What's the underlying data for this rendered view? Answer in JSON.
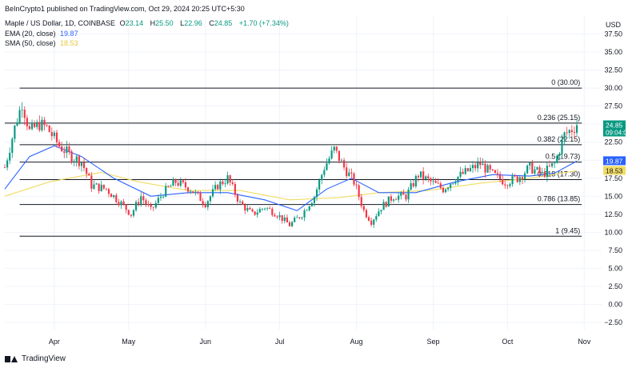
{
  "caption": "BeInCrypto1 published on TradingView.com, Oct 29, 2024 20:25 UTC+5:30",
  "legend": {
    "symbol": "Maple / US Dollar, 1D, COINBASE",
    "o_label": "O",
    "o_value": "23.14",
    "h_label": "H",
    "h_value": "25.50",
    "l_label": "L",
    "l_value": "22.96",
    "c_label": "C",
    "c_value": "24.85",
    "change": "+1.70 (+7.34%)",
    "ema_label": "EMA (20, close)",
    "ema_value": "19.87",
    "sma_label": "SMA (50, close)",
    "sma_value": "18.53"
  },
  "currency": "USD",
  "footer_brand": "TradingView",
  "colors": {
    "up": "#089981",
    "down": "#f23645",
    "ema": "#2962ff",
    "sma": "#f0dc64",
    "fib": "#131722",
    "grid": "#f0f3fa"
  },
  "chart_data": {
    "type": "candlestick",
    "y_axis": {
      "min": -3.5,
      "max": 40,
      "ticks": [
        "−2.50",
        "0.00",
        "2.50",
        "5.00",
        "7.50",
        "10.00",
        "12.50",
        "15.00",
        "17.50",
        "20.00",
        "22.50",
        "25.00",
        "27.50",
        "30.00",
        "32.50",
        "35.00",
        "37.50"
      ],
      "tick_values": [
        -2.5,
        0,
        2.5,
        5,
        7.5,
        10,
        12.5,
        15,
        17.5,
        20,
        22.5,
        25,
        27.5,
        30,
        32.5,
        35,
        37.5
      ]
    },
    "x_axis": {
      "labels": [
        "Apr",
        "May",
        "Jun",
        "Jul",
        "Aug",
        "Sep",
        "Oct",
        "Nov"
      ],
      "label_dates": [
        "2024-04-01",
        "2024-05-01",
        "2024-06-01",
        "2024-07-01",
        "2024-08-01",
        "2024-09-01",
        "2024-10-01",
        "2024-11-01"
      ],
      "start": "2024-03-12",
      "end": "2024-11-08"
    },
    "fib_levels": [
      {
        "label": "0 (30.00)",
        "value": 30.0
      },
      {
        "label": "0.236 (25.15)",
        "value": 25.15
      },
      {
        "label": "0.382 (22.15)",
        "value": 22.15
      },
      {
        "label": "0.5 (19.73)",
        "value": 19.73
      },
      {
        "label": "0.618 (17.30)",
        "value": 17.3
      },
      {
        "label": "0.786 (13.85)",
        "value": 13.85
      },
      {
        "label": "1 (9.45)",
        "value": 9.45
      }
    ],
    "price_tags": [
      {
        "value": 24.85,
        "text": "24.85",
        "subtext": "09:04:08",
        "color": "#089981"
      },
      {
        "value": 19.87,
        "text": "19.87",
        "color": "#2962ff"
      },
      {
        "value": 18.53,
        "text": "18.53",
        "color": "#f0dc64"
      }
    ],
    "price_path": [
      [
        "2024-03-12",
        19.0
      ],
      [
        "2024-03-16",
        24.5
      ],
      [
        "2024-03-19",
        28.0
      ],
      [
        "2024-03-22",
        24.0
      ],
      [
        "2024-03-26",
        25.0
      ],
      [
        "2024-03-29",
        24.5
      ],
      [
        "2024-04-03",
        22.0
      ],
      [
        "2024-04-08",
        20.5
      ],
      [
        "2024-04-12",
        19.8
      ],
      [
        "2024-04-16",
        16.5
      ],
      [
        "2024-04-22",
        16.0
      ],
      [
        "2024-04-28",
        14.0
      ],
      [
        "2024-05-02",
        12.5
      ],
      [
        "2024-05-06",
        15.0
      ],
      [
        "2024-05-10",
        13.0
      ],
      [
        "2024-05-15",
        15.5
      ],
      [
        "2024-05-20",
        17.0
      ],
      [
        "2024-05-26",
        16.0
      ],
      [
        "2024-06-01",
        14.0
      ],
      [
        "2024-06-06",
        16.5
      ],
      [
        "2024-06-10",
        17.5
      ],
      [
        "2024-06-15",
        14.0
      ],
      [
        "2024-06-20",
        12.5
      ],
      [
        "2024-06-25",
        13.5
      ],
      [
        "2024-06-30",
        12.5
      ],
      [
        "2024-07-05",
        11.0
      ],
      [
        "2024-07-10",
        12.5
      ],
      [
        "2024-07-15",
        15.0
      ],
      [
        "2024-07-19",
        19.0
      ],
      [
        "2024-07-23",
        21.5
      ],
      [
        "2024-07-27",
        19.0
      ],
      [
        "2024-07-31",
        17.0
      ],
      [
        "2024-08-04",
        13.0
      ],
      [
        "2024-08-07",
        11.5
      ],
      [
        "2024-08-11",
        13.5
      ],
      [
        "2024-08-16",
        15.0
      ],
      [
        "2024-08-21",
        15.0
      ],
      [
        "2024-08-26",
        18.0
      ],
      [
        "2024-08-31",
        17.0
      ],
      [
        "2024-09-05",
        16.0
      ],
      [
        "2024-09-10",
        17.5
      ],
      [
        "2024-09-15",
        18.5
      ],
      [
        "2024-09-20",
        19.5
      ],
      [
        "2024-09-25",
        18.0
      ],
      [
        "2024-09-30",
        17.0
      ],
      [
        "2024-10-05",
        17.5
      ],
      [
        "2024-10-10",
        19.0
      ],
      [
        "2024-10-15",
        18.0
      ],
      [
        "2024-10-20",
        19.5
      ],
      [
        "2024-10-24",
        23.5
      ],
      [
        "2024-10-29",
        24.85
      ]
    ],
    "ema_path": [
      [
        "2024-03-12",
        16.0
      ],
      [
        "2024-03-22",
        20.5
      ],
      [
        "2024-04-01",
        22.0
      ],
      [
        "2024-04-12",
        20.5
      ],
      [
        "2024-04-25",
        17.5
      ],
      [
        "2024-05-10",
        15.0
      ],
      [
        "2024-05-25",
        15.5
      ],
      [
        "2024-06-10",
        15.5
      ],
      [
        "2024-06-25",
        14.5
      ],
      [
        "2024-07-08",
        13.0
      ],
      [
        "2024-07-20",
        16.0
      ],
      [
        "2024-07-30",
        17.5
      ],
      [
        "2024-08-10",
        15.5
      ],
      [
        "2024-08-25",
        15.5
      ],
      [
        "2024-09-10",
        17.0
      ],
      [
        "2024-09-25",
        18.0
      ],
      [
        "2024-10-10",
        17.8
      ],
      [
        "2024-10-20",
        18.2
      ],
      [
        "2024-10-29",
        19.87
      ]
    ],
    "sma_path": [
      [
        "2024-03-12",
        15.0
      ],
      [
        "2024-03-30",
        17.0
      ],
      [
        "2024-04-20",
        18.3
      ],
      [
        "2024-05-05",
        17.0
      ],
      [
        "2024-05-25",
        15.8
      ],
      [
        "2024-06-15",
        15.8
      ],
      [
        "2024-07-05",
        14.5
      ],
      [
        "2024-07-25",
        14.8
      ],
      [
        "2024-08-10",
        15.5
      ],
      [
        "2024-08-30",
        15.8
      ],
      [
        "2024-09-20",
        16.8
      ],
      [
        "2024-10-10",
        17.5
      ],
      [
        "2024-10-29",
        18.53
      ]
    ]
  }
}
